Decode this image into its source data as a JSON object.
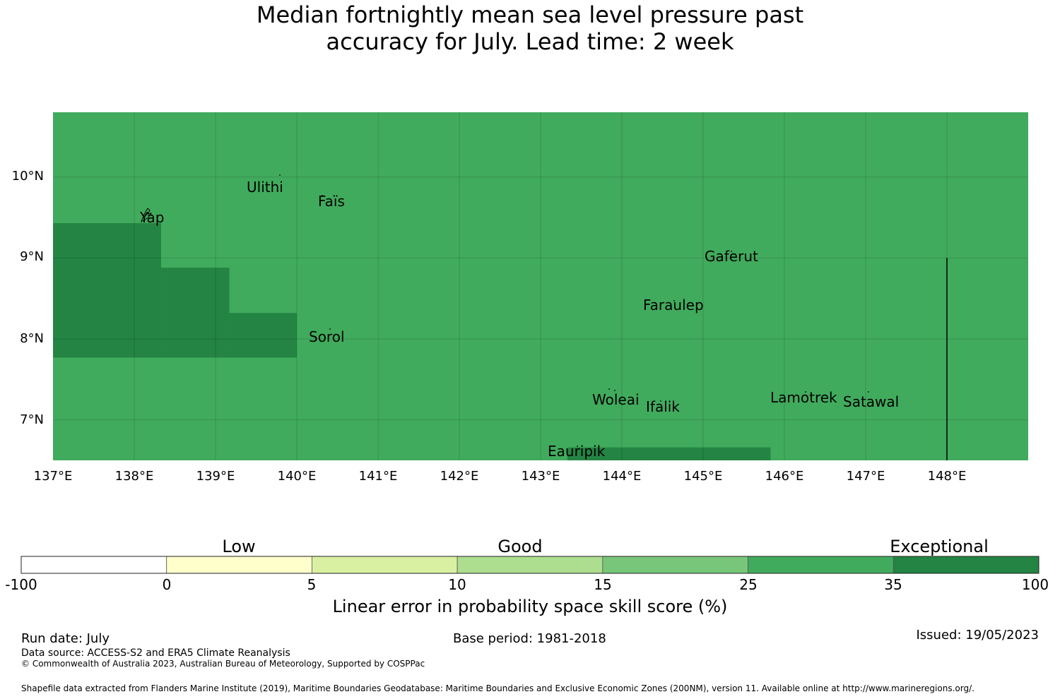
{
  "title": {
    "line1": "Median fortnightly mean sea level pressure past",
    "line2": "accuracy for July. Lead time: 2 week"
  },
  "map": {
    "lon_range": [
      137,
      149
    ],
    "lat_range": [
      6.5,
      10.8
    ],
    "lat_ticks": [
      "10°N",
      "9°N",
      "8°N",
      "7°N"
    ],
    "lon_ticks": [
      "137°E",
      "138°E",
      "139°E",
      "140°E",
      "141°E",
      "142°E",
      "143°E",
      "144°E",
      "145°E",
      "146°E",
      "147°E",
      "148°E"
    ],
    "background_category_color": "#41ab5d",
    "high_category_color": "#238443",
    "high_skill_regions_lonlat": [
      {
        "lon": [
          137.0,
          138.33
        ],
        "lat": [
          7.77,
          9.43
        ]
      },
      {
        "lon": [
          138.33,
          139.17
        ],
        "lat": [
          7.77,
          8.88
        ]
      },
      {
        "lon": [
          139.17,
          140.0
        ],
        "lat": [
          7.77,
          8.32
        ]
      },
      {
        "lon": [
          143.33,
          145.83
        ],
        "lat": [
          6.5,
          6.66
        ]
      }
    ],
    "boundary_line": {
      "lon": 148.0,
      "lat": [
        6.5,
        9.0
      ]
    },
    "places": [
      {
        "name": "Ulithi"
      },
      {
        "name": "Faïs"
      },
      {
        "name": "Yap"
      },
      {
        "name": "Gaferut"
      },
      {
        "name": "Faraulep"
      },
      {
        "name": "Sorol"
      },
      {
        "name": "Woleai"
      },
      {
        "name": "Ifalik"
      },
      {
        "name": "Lamotrek"
      },
      {
        "name": "Satawal"
      },
      {
        "name": "Eauripik"
      }
    ]
  },
  "legend": {
    "categories": [
      "Low",
      "Good",
      "Exceptional"
    ],
    "colors": [
      "#ffffff",
      "#ffffcc",
      "#d9f0a3",
      "#addd8e",
      "#78c679",
      "#41ab5d",
      "#238443"
    ],
    "ticks": [
      "-100",
      "0",
      "5",
      "10",
      "15",
      "25",
      "35",
      "100"
    ],
    "title": "Linear error in probability space skill score (%)"
  },
  "footer": {
    "run_date": "Run date: July",
    "base_period": "Base period: 1981-2018",
    "issued": "Issued: 19/05/2023",
    "data_source": "Data source: ACCESS-S2 and ERA5 Climate Reanalysis",
    "copyright": "© Commonwealth of Australia 2023, Australian Bureau of Meteorology, Supported by COSPPac",
    "shapefile": "Shapefile data extracted from Flanders Marine Institute (2019), Maritime Boundaries Geodatabase: Maritime Boundaries and Exclusive Economic Zones (200NM), version 11. Available online at http://www.marineregions.org/."
  }
}
